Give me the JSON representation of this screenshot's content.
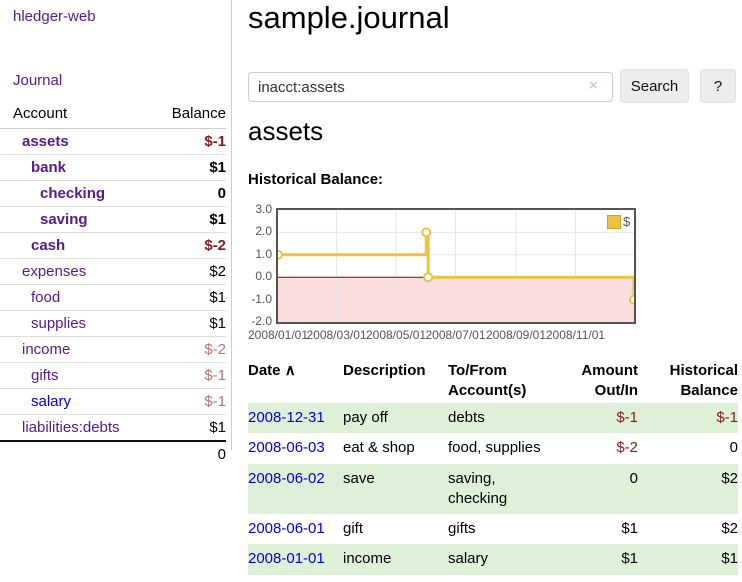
{
  "colors": {
    "accent_purple": "#551a8b",
    "link_blue": "#0000e0",
    "negative_strong": "#8b1a1a",
    "negative_muted": "#bf7171",
    "chart_series_gold": "#edc240",
    "chart_negative_fill": "#fbdddd",
    "chart_zero_line": "#8b0000",
    "row_stripe_green": "#dff0d8"
  },
  "sidebar": {
    "app_title": "hledger-web",
    "nav": {
      "journal_label": "Journal"
    },
    "accounts_table": {
      "headers": {
        "account": "Account",
        "balance": "Balance"
      },
      "rows": [
        {
          "name": "assets",
          "balance": "$-1",
          "indent": 1,
          "bold": true,
          "balance_class": "neg-strong",
          "link_color": "purple"
        },
        {
          "name": "bank",
          "balance": "$1",
          "indent": 2,
          "bold": true,
          "balance_class": "",
          "link_color": "purple"
        },
        {
          "name": "checking",
          "balance": "0",
          "indent": 3,
          "bold": true,
          "balance_class": "",
          "link_color": "purple"
        },
        {
          "name": "saving",
          "balance": "$1",
          "indent": 3,
          "bold": true,
          "balance_class": "",
          "link_color": "purple"
        },
        {
          "name": "cash",
          "balance": "$-2",
          "indent": 2,
          "bold": true,
          "balance_class": "neg-strong",
          "link_color": "purple"
        },
        {
          "name": "expenses",
          "balance": "$2",
          "indent": 1,
          "bold": false,
          "balance_class": "",
          "link_color": "purple"
        },
        {
          "name": "food",
          "balance": "$1",
          "indent": 2,
          "bold": false,
          "balance_class": "",
          "link_color": "purple"
        },
        {
          "name": "supplies",
          "balance": "$1",
          "indent": 2,
          "bold": false,
          "balance_class": "",
          "link_color": "purple"
        },
        {
          "name": "income",
          "balance": "$-2",
          "indent": 1,
          "bold": false,
          "balance_class": "neg-muted",
          "link_color": "purple"
        },
        {
          "name": "gifts",
          "balance": "$-1",
          "indent": 2,
          "bold": false,
          "balance_class": "neg-muted",
          "link_color": "purple"
        },
        {
          "name": "salary",
          "balance": "$-1",
          "indent": 2,
          "bold": false,
          "balance_class": "neg-muted",
          "link_color": "blue"
        },
        {
          "name": "liabilities:debts",
          "balance": "$1",
          "indent": 1,
          "bold": false,
          "balance_class": "",
          "link_color": "purple"
        }
      ],
      "total": "0"
    }
  },
  "main": {
    "title": "sample.journal",
    "search": {
      "query": "inacct:assets",
      "clear_icon": "×",
      "button_label": "Search",
      "help_label": "?"
    },
    "account_heading": "assets",
    "chart_label": "Historical Balance:",
    "register_table": {
      "headers": [
        {
          "label": "Date",
          "sort_indicator": "∧",
          "align": "left"
        },
        {
          "label": "Description",
          "align": "left"
        },
        {
          "label": "To/From Account(s)",
          "align": "left"
        },
        {
          "label": "Amount Out/In",
          "align": "right"
        },
        {
          "label": "Historical Balance",
          "align": "right"
        }
      ],
      "rows": [
        {
          "date": "2008-12-31",
          "description": "pay off",
          "accounts": "debts",
          "amount": "$-1",
          "amount_negative": true,
          "balance": "$-1",
          "balance_negative": true
        },
        {
          "date": "2008-06-03",
          "description": "eat & shop",
          "accounts": "food, supplies",
          "amount": "$-2",
          "amount_negative": true,
          "balance": "0",
          "balance_negative": false
        },
        {
          "date": "2008-06-02",
          "description": "save",
          "accounts": "saving, checking",
          "amount": "0",
          "amount_negative": false,
          "balance": "$2",
          "balance_negative": false
        },
        {
          "date": "2008-06-01",
          "description": "gift",
          "accounts": "gifts",
          "amount": "$1",
          "amount_negative": false,
          "balance": "$2",
          "balance_negative": false
        },
        {
          "date": "2008-01-01",
          "description": "income",
          "accounts": "salary",
          "amount": "$1",
          "amount_negative": false,
          "balance": "$1",
          "balance_negative": false
        }
      ]
    }
  },
  "chart_data": {
    "type": "line",
    "style": "step",
    "title": "Historical Balance",
    "series": [
      {
        "name": "$",
        "points": [
          [
            "2008/01/01",
            1
          ],
          [
            "2008/06/01",
            2
          ],
          [
            "2008/06/03",
            0
          ],
          [
            "2008/12/31",
            -1
          ]
        ]
      }
    ],
    "x_ticks": [
      "2008/01/01",
      "2008/03/01",
      "2008/05/01",
      "2008/07/01",
      "2008/09/01",
      "2008/11/01"
    ],
    "y_ticks": [
      3.0,
      2.0,
      1.0,
      0.0,
      -1.0,
      -2.0
    ],
    "xlim": [
      "2008/01/01",
      "2008/12/31"
    ],
    "ylim": [
      -2,
      3
    ],
    "grid": true,
    "legend_position": "top-right",
    "negative_region_shaded": true
  }
}
